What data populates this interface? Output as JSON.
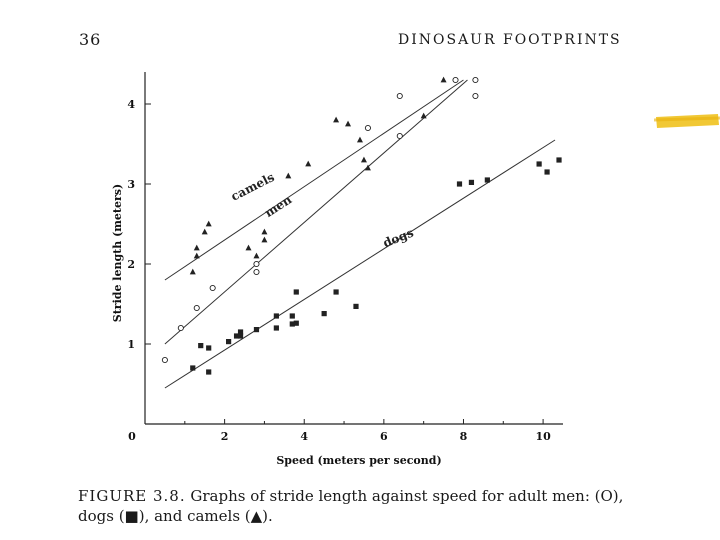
{
  "page_number": "36",
  "running_head": "DINOSAUR FOOTPRINTS",
  "caption": {
    "label": "FIGURE 3.8.",
    "text": "Graphs of stride length against speed for adult men: (O), dogs (■), and camels (▲)."
  },
  "chart_data": {
    "type": "scatter",
    "xlabel": "Speed (meters per second)",
    "ylabel": "Stride length (meters)",
    "xlim": [
      0,
      10.5
    ],
    "ylim": [
      0,
      4.4
    ],
    "x_ticks": [
      0,
      2,
      4,
      6,
      8,
      10
    ],
    "y_ticks": [
      1,
      2,
      3,
      4
    ],
    "x_tick_labels": [
      "0",
      "2",
      "4",
      "6",
      "8",
      "10"
    ],
    "y_tick_labels": [
      "1",
      "2",
      "3",
      "4"
    ],
    "grid": false,
    "series": [
      {
        "name": "camels",
        "marker": "triangle",
        "points": [
          [
            1.2,
            1.9
          ],
          [
            1.3,
            2.1
          ],
          [
            1.3,
            2.2
          ],
          [
            1.5,
            2.4
          ],
          [
            1.6,
            2.5
          ],
          [
            2.6,
            2.2
          ],
          [
            2.8,
            2.1
          ],
          [
            3.0,
            2.3
          ],
          [
            3.0,
            2.4
          ],
          [
            3.6,
            3.1
          ],
          [
            4.1,
            3.25
          ],
          [
            4.8,
            3.8
          ],
          [
            5.1,
            3.75
          ],
          [
            5.4,
            3.55
          ],
          [
            5.6,
            3.2
          ],
          [
            5.5,
            3.3
          ],
          [
            7.0,
            3.85
          ],
          [
            7.5,
            4.3
          ]
        ],
        "trend": [
          [
            0.5,
            1.8
          ],
          [
            8.0,
            4.3
          ]
        ]
      },
      {
        "name": "men",
        "marker": "circle",
        "points": [
          [
            0.5,
            0.8
          ],
          [
            0.9,
            1.2
          ],
          [
            1.3,
            1.45
          ],
          [
            1.7,
            1.7
          ],
          [
            2.8,
            1.9
          ],
          [
            2.8,
            2.0
          ],
          [
            5.6,
            3.7
          ],
          [
            6.4,
            3.6
          ],
          [
            6.4,
            4.1
          ],
          [
            7.8,
            4.3
          ],
          [
            8.3,
            4.1
          ],
          [
            8.3,
            4.3
          ]
        ],
        "trend": [
          [
            0.5,
            1.0
          ],
          [
            8.1,
            4.3
          ]
        ]
      },
      {
        "name": "dogs",
        "marker": "square",
        "points": [
          [
            1.2,
            0.7
          ],
          [
            1.4,
            0.98
          ],
          [
            1.6,
            0.95
          ],
          [
            1.6,
            0.65
          ],
          [
            2.1,
            1.03
          ],
          [
            2.3,
            1.1
          ],
          [
            2.4,
            1.15
          ],
          [
            2.4,
            1.1
          ],
          [
            2.8,
            1.18
          ],
          [
            3.3,
            1.2
          ],
          [
            3.3,
            1.35
          ],
          [
            3.7,
            1.35
          ],
          [
            3.7,
            1.25
          ],
          [
            3.8,
            1.26
          ],
          [
            3.8,
            1.65
          ],
          [
            4.5,
            1.38
          ],
          [
            4.8,
            1.65
          ],
          [
            5.3,
            1.47
          ],
          [
            7.9,
            3.0
          ],
          [
            8.2,
            3.02
          ],
          [
            8.6,
            3.05
          ],
          [
            9.9,
            3.25
          ],
          [
            10.1,
            3.15
          ],
          [
            10.4,
            3.3
          ]
        ],
        "trend": [
          [
            0.5,
            0.45
          ],
          [
            10.3,
            3.55
          ]
        ]
      }
    ],
    "annotations": [
      {
        "text": "camels",
        "x": 2.75,
        "y": 2.92,
        "rotate": -27
      },
      {
        "text": "men",
        "x": 3.4,
        "y": 2.68,
        "rotate": -33
      },
      {
        "text": "dogs",
        "x": 6.4,
        "y": 2.28,
        "rotate": -22
      }
    ]
  }
}
